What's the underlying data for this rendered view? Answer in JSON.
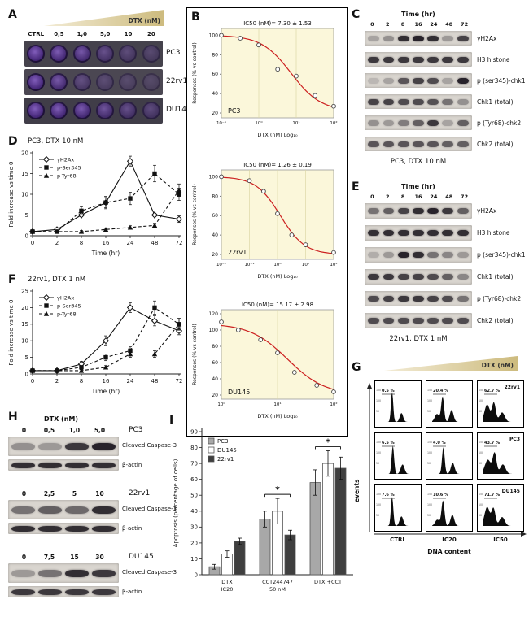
{
  "panels": {
    "A": {
      "label": "A",
      "gradient_label": "DTX (nM)",
      "doses": [
        "CTRL",
        "0,5",
        "1,0",
        "5,0",
        "10",
        "20"
      ],
      "rows": [
        {
          "name": "PC3",
          "stain": [
            0.95,
            0.88,
            0.8,
            0.55,
            0.4,
            0.32
          ]
        },
        {
          "name": "22rv1",
          "stain": [
            0.95,
            0.78,
            0.45,
            0.32,
            0.26,
            0.22
          ]
        },
        {
          "name": "DU145",
          "stain": [
            0.95,
            0.9,
            0.85,
            0.7,
            0.55,
            0.45
          ]
        }
      ]
    },
    "B": {
      "label": "B"
    },
    "C": {
      "label": "C",
      "time_header": "Time (hr)",
      "times": [
        "0",
        "2",
        "8",
        "16",
        "24",
        "48",
        "72"
      ],
      "bands": [
        {
          "name": "γH2Ax",
          "intensity": [
            0.25,
            0.35,
            0.85,
            0.9,
            0.85,
            0.3,
            0.75
          ]
        },
        {
          "name": "H3 histone",
          "intensity": [
            0.8,
            0.8,
            0.8,
            0.8,
            0.8,
            0.8,
            0.8
          ]
        },
        {
          "name": "p (ser345)-chk1",
          "intensity": [
            0.15,
            0.25,
            0.65,
            0.75,
            0.7,
            0.25,
            0.9
          ]
        },
        {
          "name": "Chk1 (total)",
          "intensity": [
            0.75,
            0.75,
            0.7,
            0.7,
            0.68,
            0.5,
            0.35
          ]
        },
        {
          "name": "p (Tyr68)-chk2",
          "intensity": [
            0.35,
            0.3,
            0.45,
            0.6,
            0.8,
            0.25,
            0.6
          ]
        },
        {
          "name": "Chk2 (total)",
          "intensity": [
            0.65,
            0.65,
            0.65,
            0.65,
            0.65,
            0.6,
            0.6
          ]
        }
      ],
      "caption": "PC3, DTX 10 nM"
    },
    "D": {
      "label": "D",
      "title": "PC3, DTX 10 nM"
    },
    "E": {
      "label": "E",
      "time_header": "Time (hr)",
      "times": [
        "0",
        "2",
        "8",
        "16",
        "24",
        "48",
        "72"
      ],
      "bands": [
        {
          "name": "γH2Ax",
          "intensity": [
            0.5,
            0.6,
            0.75,
            0.85,
            0.9,
            0.8,
            0.6
          ]
        },
        {
          "name": "H3 histone",
          "intensity": [
            0.85,
            0.85,
            0.85,
            0.85,
            0.85,
            0.85,
            0.85
          ]
        },
        {
          "name": "p (ser345)-chk1",
          "intensity": [
            0.2,
            0.3,
            0.9,
            0.85,
            0.5,
            0.4,
            0.3
          ]
        },
        {
          "name": "Chk1 (total)",
          "intensity": [
            0.8,
            0.8,
            0.75,
            0.75,
            0.7,
            0.6,
            0.4
          ]
        },
        {
          "name": "p (Tyr68)-chk2",
          "intensity": [
            0.7,
            0.75,
            0.8,
            0.8,
            0.75,
            0.7,
            0.5
          ]
        },
        {
          "name": "Chk2 (total)",
          "intensity": [
            0.7,
            0.7,
            0.7,
            0.7,
            0.7,
            0.7,
            0.7
          ]
        }
      ],
      "caption": "22rv1, DTX 1 nM"
    },
    "F": {
      "label": "F",
      "title": "22rv1, DTX 1 nM"
    },
    "G": {
      "label": "G",
      "gradient_label": "DTX (nM)"
    },
    "H": {
      "label": "H",
      "header": "DTX (nM)",
      "blocks": [
        {
          "cell": "PC3",
          "doses": [
            "0",
            "0,5",
            "1,0",
            "5,0"
          ],
          "band1_label": "Cleaved Caspase-3",
          "band2_label": "β-actin",
          "cc3": [
            0.35,
            0.3,
            0.8,
            0.9
          ],
          "actin": [
            0.85,
            0.85,
            0.85,
            0.85
          ]
        },
        {
          "cell": "22rv1",
          "doses": [
            "0",
            "2,5",
            "5",
            "10"
          ],
          "band1_label": "Cleaved Caspase-3",
          "band2_label": "β-actin",
          "cc3": [
            0.5,
            0.6,
            0.55,
            0.85
          ],
          "actin": [
            0.85,
            0.85,
            0.85,
            0.85
          ]
        },
        {
          "cell": "DU145",
          "doses": [
            "0",
            "7,5",
            "15",
            "30"
          ],
          "band1_label": "Cleaved Caspase-3",
          "band2_label": "β-actin",
          "cc3": [
            0.3,
            0.5,
            0.85,
            0.8
          ],
          "actin": [
            0.8,
            0.8,
            0.8,
            0.8
          ]
        }
      ]
    },
    "I": {
      "label": "I"
    }
  },
  "chart_data": [
    {
      "id": "B-PC3",
      "type": "scatter",
      "title": "IC50 (nM)= 7.30 ± 1.53",
      "cell": "PC3",
      "xlabel": "DTX  (nM) Log₁₀",
      "ylabel": "Responses (% vs control)",
      "xlim_log": [
        -1,
        2
      ],
      "ylim": [
        15,
        107
      ],
      "yticks": [
        20,
        40,
        60,
        80,
        100
      ],
      "xticks": [
        {
          "pos": -1,
          "label": "10⁻¹"
        },
        {
          "pos": 0,
          "label": "10⁰"
        },
        {
          "pos": 1,
          "label": "10¹"
        },
        {
          "pos": 2,
          "label": "10²"
        }
      ],
      "fit": {
        "top": 100,
        "bottom": 22,
        "ic50": 7.3,
        "hill": 1.1
      },
      "points": [
        [
          0.1,
          100
        ],
        [
          0.32,
          97
        ],
        [
          1,
          90
        ],
        [
          3.2,
          65
        ],
        [
          10,
          58
        ],
        [
          32,
          38
        ],
        [
          100,
          27
        ]
      ]
    },
    {
      "id": "B-22rv1",
      "type": "scatter",
      "title": "IC50 (nM)= 1.26 ± 0.19",
      "cell": "22rv1",
      "xlabel": "DTX  (nM) Log₁₀",
      "ylabel": "Responses (% vs control)",
      "xlim_log": [
        -2,
        2
      ],
      "ylim": [
        15,
        107
      ],
      "yticks": [
        20,
        40,
        60,
        80,
        100
      ],
      "xticks": [
        {
          "pos": -2,
          "label": "10⁻²"
        },
        {
          "pos": -1,
          "label": "10⁻¹"
        },
        {
          "pos": 0,
          "label": "10⁰"
        },
        {
          "pos": 1,
          "label": "10¹"
        },
        {
          "pos": 2,
          "label": "10²"
        }
      ],
      "fit": {
        "top": 100,
        "bottom": 20,
        "ic50": 1.26,
        "hill": 1.0
      },
      "points": [
        [
          0.01,
          100
        ],
        [
          0.1,
          96
        ],
        [
          0.32,
          85
        ],
        [
          1,
          62
        ],
        [
          3.2,
          40
        ],
        [
          10,
          30
        ],
        [
          100,
          22
        ]
      ]
    },
    {
      "id": "B-DU145",
      "type": "scatter",
      "title": "IC50 (nM)= 15.17 ± 2.98",
      "cell": "DU145",
      "xlabel": "DTX  (nM) Log₁₀",
      "ylabel": "Responses (% vs control)",
      "xlim_log": [
        0,
        2
      ],
      "ylim": [
        15,
        125
      ],
      "yticks": [
        20,
        40,
        60,
        80,
        100,
        120
      ],
      "xticks": [
        {
          "pos": 0,
          "label": "10⁰"
        },
        {
          "pos": 1,
          "label": "10¹"
        },
        {
          "pos": 2,
          "label": "10²"
        }
      ],
      "fit": {
        "top": 108,
        "bottom": 20,
        "ic50": 15.17,
        "hill": 1.3
      },
      "points": [
        [
          1,
          110
        ],
        [
          2,
          100
        ],
        [
          5,
          88
        ],
        [
          10,
          72
        ],
        [
          20,
          48
        ],
        [
          50,
          32
        ],
        [
          100,
          24
        ]
      ]
    },
    {
      "id": "D",
      "type": "line",
      "title": "PC3, DTX 10 nM",
      "categories": [
        "0",
        "2",
        "8",
        "16",
        "24",
        "48",
        "72"
      ],
      "xlabel": "Time (hr)",
      "ylabel": "Fold increase vs time 0",
      "ylim": [
        0,
        20
      ],
      "yticks": [
        0,
        5,
        10,
        15,
        20
      ],
      "series": [
        {
          "name": "γH2Ax",
          "marker": "diamond-open",
          "dash": "solid",
          "values": [
            1,
            1.5,
            5,
            8,
            18,
            5,
            4
          ],
          "err": [
            0.3,
            0.3,
            1,
            1.5,
            1.2,
            1,
            0.8
          ]
        },
        {
          "name": "p-Ser345",
          "marker": "square",
          "dash": "dashed",
          "values": [
            1,
            1,
            6,
            8,
            9,
            15,
            10
          ],
          "err": [
            0.2,
            0.2,
            1,
            1.2,
            1.5,
            2,
            1.5
          ]
        },
        {
          "name": "p-Tyr68",
          "marker": "triangle",
          "dash": "dashed",
          "values": [
            1,
            1,
            1,
            1.5,
            2,
            2.5,
            11
          ],
          "err": [
            0.2,
            0.2,
            0.3,
            0.3,
            0.4,
            0.5,
            1.5
          ]
        }
      ]
    },
    {
      "id": "F",
      "type": "line",
      "title": "22rv1, DTX 1 nM",
      "categories": [
        "0",
        "2",
        "8",
        "16",
        "24",
        "48",
        "72"
      ],
      "xlabel": "Time (hr)",
      "ylabel": "Fold increase vs time 0",
      "ylim": [
        0,
        25
      ],
      "yticks": [
        0,
        5,
        10,
        15,
        20,
        25
      ],
      "series": [
        {
          "name": "γH2Ax",
          "marker": "diamond-open",
          "dash": "solid",
          "values": [
            1,
            1,
            3,
            10,
            20,
            16,
            13
          ],
          "err": [
            0.3,
            0.3,
            0.8,
            1.5,
            1.5,
            1.5,
            1.2
          ]
        },
        {
          "name": "p-Ser345",
          "marker": "square",
          "dash": "dashed",
          "values": [
            1,
            1,
            2,
            5,
            7,
            20,
            15
          ],
          "err": [
            0.2,
            0.2,
            0.5,
            1,
            1.2,
            2,
            1.8
          ]
        },
        {
          "name": "p-Tyr68",
          "marker": "triangle",
          "dash": "dashed",
          "values": [
            1,
            1,
            1,
            2,
            6,
            6,
            15
          ],
          "err": [
            0.2,
            0.2,
            0.3,
            0.5,
            1,
            1,
            1.6
          ]
        }
      ]
    },
    {
      "id": "I",
      "type": "bar",
      "ylabel": "Apoptosis (percentage of cells)",
      "ylim": [
        0,
        90
      ],
      "yticks": [
        0,
        10,
        20,
        30,
        40,
        50,
        60,
        70,
        80,
        90
      ],
      "categories": [
        [
          "DTX",
          "IC20"
        ],
        [
          "CCT244747",
          "50 nM"
        ],
        [
          "DTX +CCT",
          ""
        ]
      ],
      "series": [
        {
          "name": "PC3",
          "color": "#a8a8a8",
          "values": [
            5,
            35,
            58
          ],
          "err": [
            1.5,
            5,
            8
          ]
        },
        {
          "name": "DU145",
          "color": "#ffffff",
          "values": [
            13,
            40,
            70
          ],
          "err": [
            2,
            8,
            8
          ]
        },
        {
          "name": "22rv1",
          "color": "#3f3f3f",
          "values": [
            21,
            25,
            67
          ],
          "err": [
            2,
            3,
            7
          ]
        }
      ],
      "annotations": [
        {
          "group": 1,
          "symbol": "*"
        },
        {
          "group": 2,
          "symbol": "*"
        }
      ]
    },
    {
      "id": "G",
      "type": "histogram-grid",
      "xlabel": "DNA content",
      "ylabel": "events",
      "col_labels": [
        "CTRL",
        "IC20",
        "IC50"
      ],
      "yticks": [
        "150",
        "100",
        "50"
      ],
      "rows": [
        {
          "cell": "22rv1",
          "cells": [
            {
              "pct": "0.5 %",
              "peaks": [
                [
                  0.3,
                  0.95,
                  0.03
                ],
                [
                  0.55,
                  0.28,
                  0.045
                ]
              ]
            },
            {
              "pct": "20.4 %",
              "peaks": [
                [
                  0.28,
                  0.8,
                  0.038
                ],
                [
                  0.52,
                  0.38,
                  0.05
                ],
                [
                  0.13,
                  0.25,
                  0.06
                ]
              ]
            },
            {
              "pct": "62.7 %",
              "peaks": [
                [
                  0.1,
                  0.55,
                  0.07
                ],
                [
                  0.28,
                  0.6,
                  0.05
                ],
                [
                  0.5,
                  0.3,
                  0.07
                ]
              ]
            }
          ]
        },
        {
          "cell": "PC3",
          "cells": [
            {
              "pct": "6.5 %",
              "peaks": [
                [
                  0.32,
                  0.9,
                  0.032
                ],
                [
                  0.58,
                  0.3,
                  0.05
                ]
              ]
            },
            {
              "pct": "4.0 %",
              "peaks": [
                [
                  0.3,
                  0.85,
                  0.035
                ],
                [
                  0.55,
                  0.35,
                  0.05
                ]
              ]
            },
            {
              "pct": "43.7 %",
              "peaks": [
                [
                  0.12,
                  0.45,
                  0.08
                ],
                [
                  0.3,
                  0.65,
                  0.05
                ],
                [
                  0.52,
                  0.3,
                  0.07
                ]
              ]
            }
          ]
        },
        {
          "cell": "DU145",
          "cells": [
            {
              "pct": "7.6 %",
              "peaks": [
                [
                  0.3,
                  0.92,
                  0.032
                ],
                [
                  0.55,
                  0.3,
                  0.05
                ]
              ]
            },
            {
              "pct": "10.6 %",
              "peaks": [
                [
                  0.29,
                  0.8,
                  0.04
                ],
                [
                  0.54,
                  0.35,
                  0.05
                ],
                [
                  0.14,
                  0.2,
                  0.06
                ]
              ]
            },
            {
              "pct": "71.7 %",
              "peaks": [
                [
                  0.1,
                  0.6,
                  0.07
                ],
                [
                  0.27,
                  0.55,
                  0.05
                ],
                [
                  0.5,
                  0.28,
                  0.07
                ]
              ]
            }
          ]
        }
      ]
    }
  ]
}
